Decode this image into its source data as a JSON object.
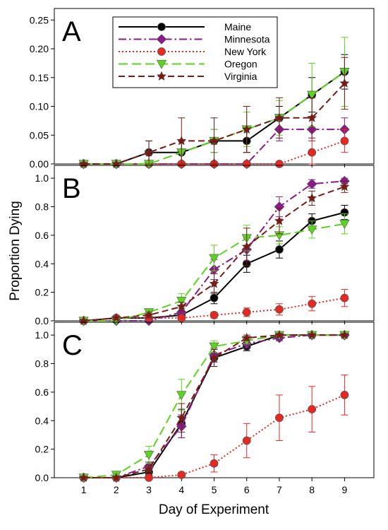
{
  "figure": {
    "ylabel": "Proportion Dying",
    "xlabel": "Day of Experiment",
    "x_ticks": [
      "1",
      "2",
      "3",
      "4",
      "5",
      "6",
      "7",
      "8",
      "9"
    ]
  },
  "legend": {
    "placement": "inside panel A, upper left",
    "entries": [
      {
        "name": "Maine",
        "color": "#000000",
        "marker": "circle",
        "dash": "solid"
      },
      {
        "name": "Minnesota",
        "color": "#8b1a8b",
        "marker": "diamond",
        "dash": "dash-dot"
      },
      {
        "name": "New York",
        "color": "#e8281e",
        "marker": "circle",
        "dash": "dotted"
      },
      {
        "name": "Oregon",
        "color": "#5ad41e",
        "marker": "triangle-down",
        "dash": "long-dash"
      },
      {
        "name": "Virginia",
        "color": "#7b1a12",
        "marker": "star",
        "dash": "dashed"
      }
    ]
  },
  "chart_data": [
    {
      "type": "line",
      "panel_label": "A",
      "x": [
        1,
        2,
        3,
        4,
        5,
        6,
        7,
        8,
        9
      ],
      "ylim": [
        0,
        0.27
      ],
      "y_ticks": [
        "0.00",
        "0.05",
        "0.10",
        "0.15",
        "0.20",
        "0.25"
      ],
      "y_tick_values": [
        0,
        0.05,
        0.1,
        0.15,
        0.2,
        0.25
      ],
      "grid": false,
      "series": [
        {
          "name": "Maine",
          "values": [
            0,
            0,
            0.02,
            0.02,
            0.04,
            0.04,
            0.08,
            0.12,
            0.16
          ],
          "err": [
            0,
            0,
            0.02,
            0.02,
            0.02,
            0.02,
            0.02,
            0.03,
            0.03
          ]
        },
        {
          "name": "Minnesota",
          "values": [
            0,
            0,
            0,
            0,
            0,
            0,
            0.06,
            0.06,
            0.06
          ],
          "err": [
            0,
            0,
            0,
            0,
            0,
            0,
            0.02,
            0.02,
            0.02
          ]
        },
        {
          "name": "New York",
          "values": [
            0,
            0,
            0,
            0,
            0,
            0,
            0,
            0.02,
            0.04
          ],
          "err": [
            0,
            0,
            0,
            0,
            0,
            0,
            0,
            0.02,
            0.02
          ]
        },
        {
          "name": "Oregon",
          "values": [
            0,
            0,
            0,
            0.02,
            0.04,
            0.06,
            0.08,
            0.12,
            0.16
          ],
          "err": [
            0,
            0,
            0,
            0.02,
            0.02,
            0.03,
            0.03,
            0.055,
            0.06
          ]
        },
        {
          "name": "Virginia",
          "values": [
            0,
            0,
            0.02,
            0.04,
            0.04,
            0.06,
            0.08,
            0.08,
            0.14
          ],
          "err": [
            0,
            0,
            0.02,
            0.04,
            0.04,
            0.04,
            0.035,
            0.035,
            0.045
          ]
        }
      ]
    },
    {
      "type": "line",
      "panel_label": "B",
      "x": [
        1,
        2,
        3,
        4,
        5,
        6,
        7,
        8,
        9
      ],
      "ylim": [
        0,
        1.09
      ],
      "y_ticks": [
        "0.0",
        "0.2",
        "0.4",
        "0.6",
        "0.8",
        "1.0"
      ],
      "y_tick_values": [
        0,
        0.2,
        0.4,
        0.6,
        0.8,
        1.0
      ],
      "grid": false,
      "series": [
        {
          "name": "Maine",
          "values": [
            0,
            0.02,
            0.02,
            0.04,
            0.16,
            0.4,
            0.5,
            0.7,
            0.76
          ],
          "err": [
            0,
            0.01,
            0.01,
            0.02,
            0.04,
            0.06,
            0.06,
            0.05,
            0.05
          ]
        },
        {
          "name": "Minnesota",
          "values": [
            0,
            0,
            0,
            0.06,
            0.36,
            0.5,
            0.8,
            0.96,
            0.98
          ],
          "err": [
            0,
            0,
            0,
            0.03,
            0.07,
            0.08,
            0.07,
            0.03,
            0.02
          ]
        },
        {
          "name": "New York",
          "values": [
            0,
            0.02,
            0.02,
            0.02,
            0.04,
            0.06,
            0.08,
            0.12,
            0.16
          ],
          "err": [
            0,
            0.01,
            0.01,
            0.01,
            0.02,
            0.03,
            0.04,
            0.05,
            0.06
          ]
        },
        {
          "name": "Oregon",
          "values": [
            0,
            0,
            0.06,
            0.14,
            0.44,
            0.58,
            0.6,
            0.64,
            0.68
          ],
          "err": [
            0,
            0,
            0.02,
            0.05,
            0.09,
            0.09,
            0.06,
            0.06,
            0.07
          ]
        },
        {
          "name": "Virginia",
          "values": [
            0,
            0.02,
            0.04,
            0.1,
            0.26,
            0.52,
            0.7,
            0.86,
            0.94
          ],
          "err": [
            0,
            0.01,
            0.02,
            0.03,
            0.07,
            0.13,
            0.09,
            0.05,
            0.04
          ]
        }
      ]
    },
    {
      "type": "line",
      "panel_label": "C",
      "x": [
        1,
        2,
        3,
        4,
        5,
        6,
        7,
        8,
        9
      ],
      "ylim": [
        0,
        1.09
      ],
      "y_ticks": [
        "0.0",
        "0.2",
        "0.4",
        "0.6",
        "0.8",
        "1.0"
      ],
      "y_tick_values": [
        0,
        0.2,
        0.4,
        0.6,
        0.8,
        1.0
      ],
      "grid": false,
      "series": [
        {
          "name": "Maine",
          "values": [
            0,
            0,
            0.04,
            0.38,
            0.84,
            0.92,
            1.0,
            1.0,
            1.0
          ],
          "err": [
            0,
            0,
            0.02,
            0.1,
            0.06,
            0.03,
            0.01,
            0,
            0
          ]
        },
        {
          "name": "Minnesota",
          "values": [
            0,
            0,
            0.08,
            0.36,
            0.86,
            0.94,
            0.98,
            1.0,
            1.0
          ],
          "err": [
            0,
            0,
            0.03,
            0.08,
            0.05,
            0.03,
            0.02,
            0,
            0
          ]
        },
        {
          "name": "New York",
          "values": [
            0,
            0,
            0,
            0.02,
            0.1,
            0.26,
            0.42,
            0.48,
            0.58
          ],
          "err": [
            0,
            0,
            0,
            0.01,
            0.06,
            0.12,
            0.16,
            0.16,
            0.14
          ]
        },
        {
          "name": "Oregon",
          "values": [
            0,
            0.02,
            0.16,
            0.58,
            0.92,
            0.96,
            1.0,
            1.0,
            1.0
          ],
          "err": [
            0,
            0.01,
            0.06,
            0.11,
            0.04,
            0.02,
            0.01,
            0,
            0
          ]
        },
        {
          "name": "Virginia",
          "values": [
            0,
            0,
            0.06,
            0.42,
            0.84,
            0.98,
            1.0,
            1.0,
            1.0
          ],
          "err": [
            0,
            0,
            0.03,
            0.1,
            0.06,
            0.02,
            0.01,
            0,
            0
          ]
        }
      ]
    }
  ]
}
